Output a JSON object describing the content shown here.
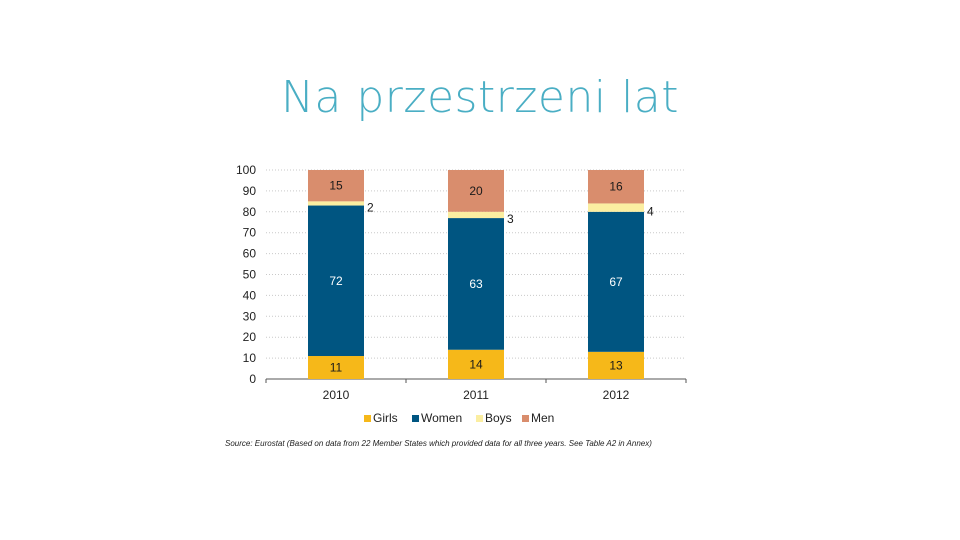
{
  "slide": {
    "title": "Na przestrzeni lat"
  },
  "chart_data": {
    "type": "bar",
    "stacked": true,
    "categories": [
      "2010",
      "2011",
      "2012"
    ],
    "series": [
      {
        "name": "Girls",
        "values": [
          11,
          14,
          13
        ],
        "color": "#f6b819",
        "label_color": "#1a1a1a"
      },
      {
        "name": "Women",
        "values": [
          72,
          63,
          67
        ],
        "color": "#005581",
        "label_color": "#ffffff"
      },
      {
        "name": "Boys",
        "values": [
          2,
          3,
          4
        ],
        "color": "#fbeea1",
        "label_color": "#1a1a1a",
        "label_outside": true
      },
      {
        "name": "Men",
        "values": [
          15,
          20,
          16
        ],
        "color": "#d98d6d",
        "label_color": "#1a1a1a"
      }
    ],
    "ylim": [
      0,
      100
    ],
    "yticks": [
      "0",
      "10",
      "20",
      "30",
      "40",
      "50",
      "60",
      "70",
      "80",
      "90",
      "100"
    ],
    "grid": true,
    "legend_position": "bottom",
    "source": "Source: Eurostat (Based on data from 22 Member States which provided data for all three years. See Table A2 in Annex)"
  }
}
